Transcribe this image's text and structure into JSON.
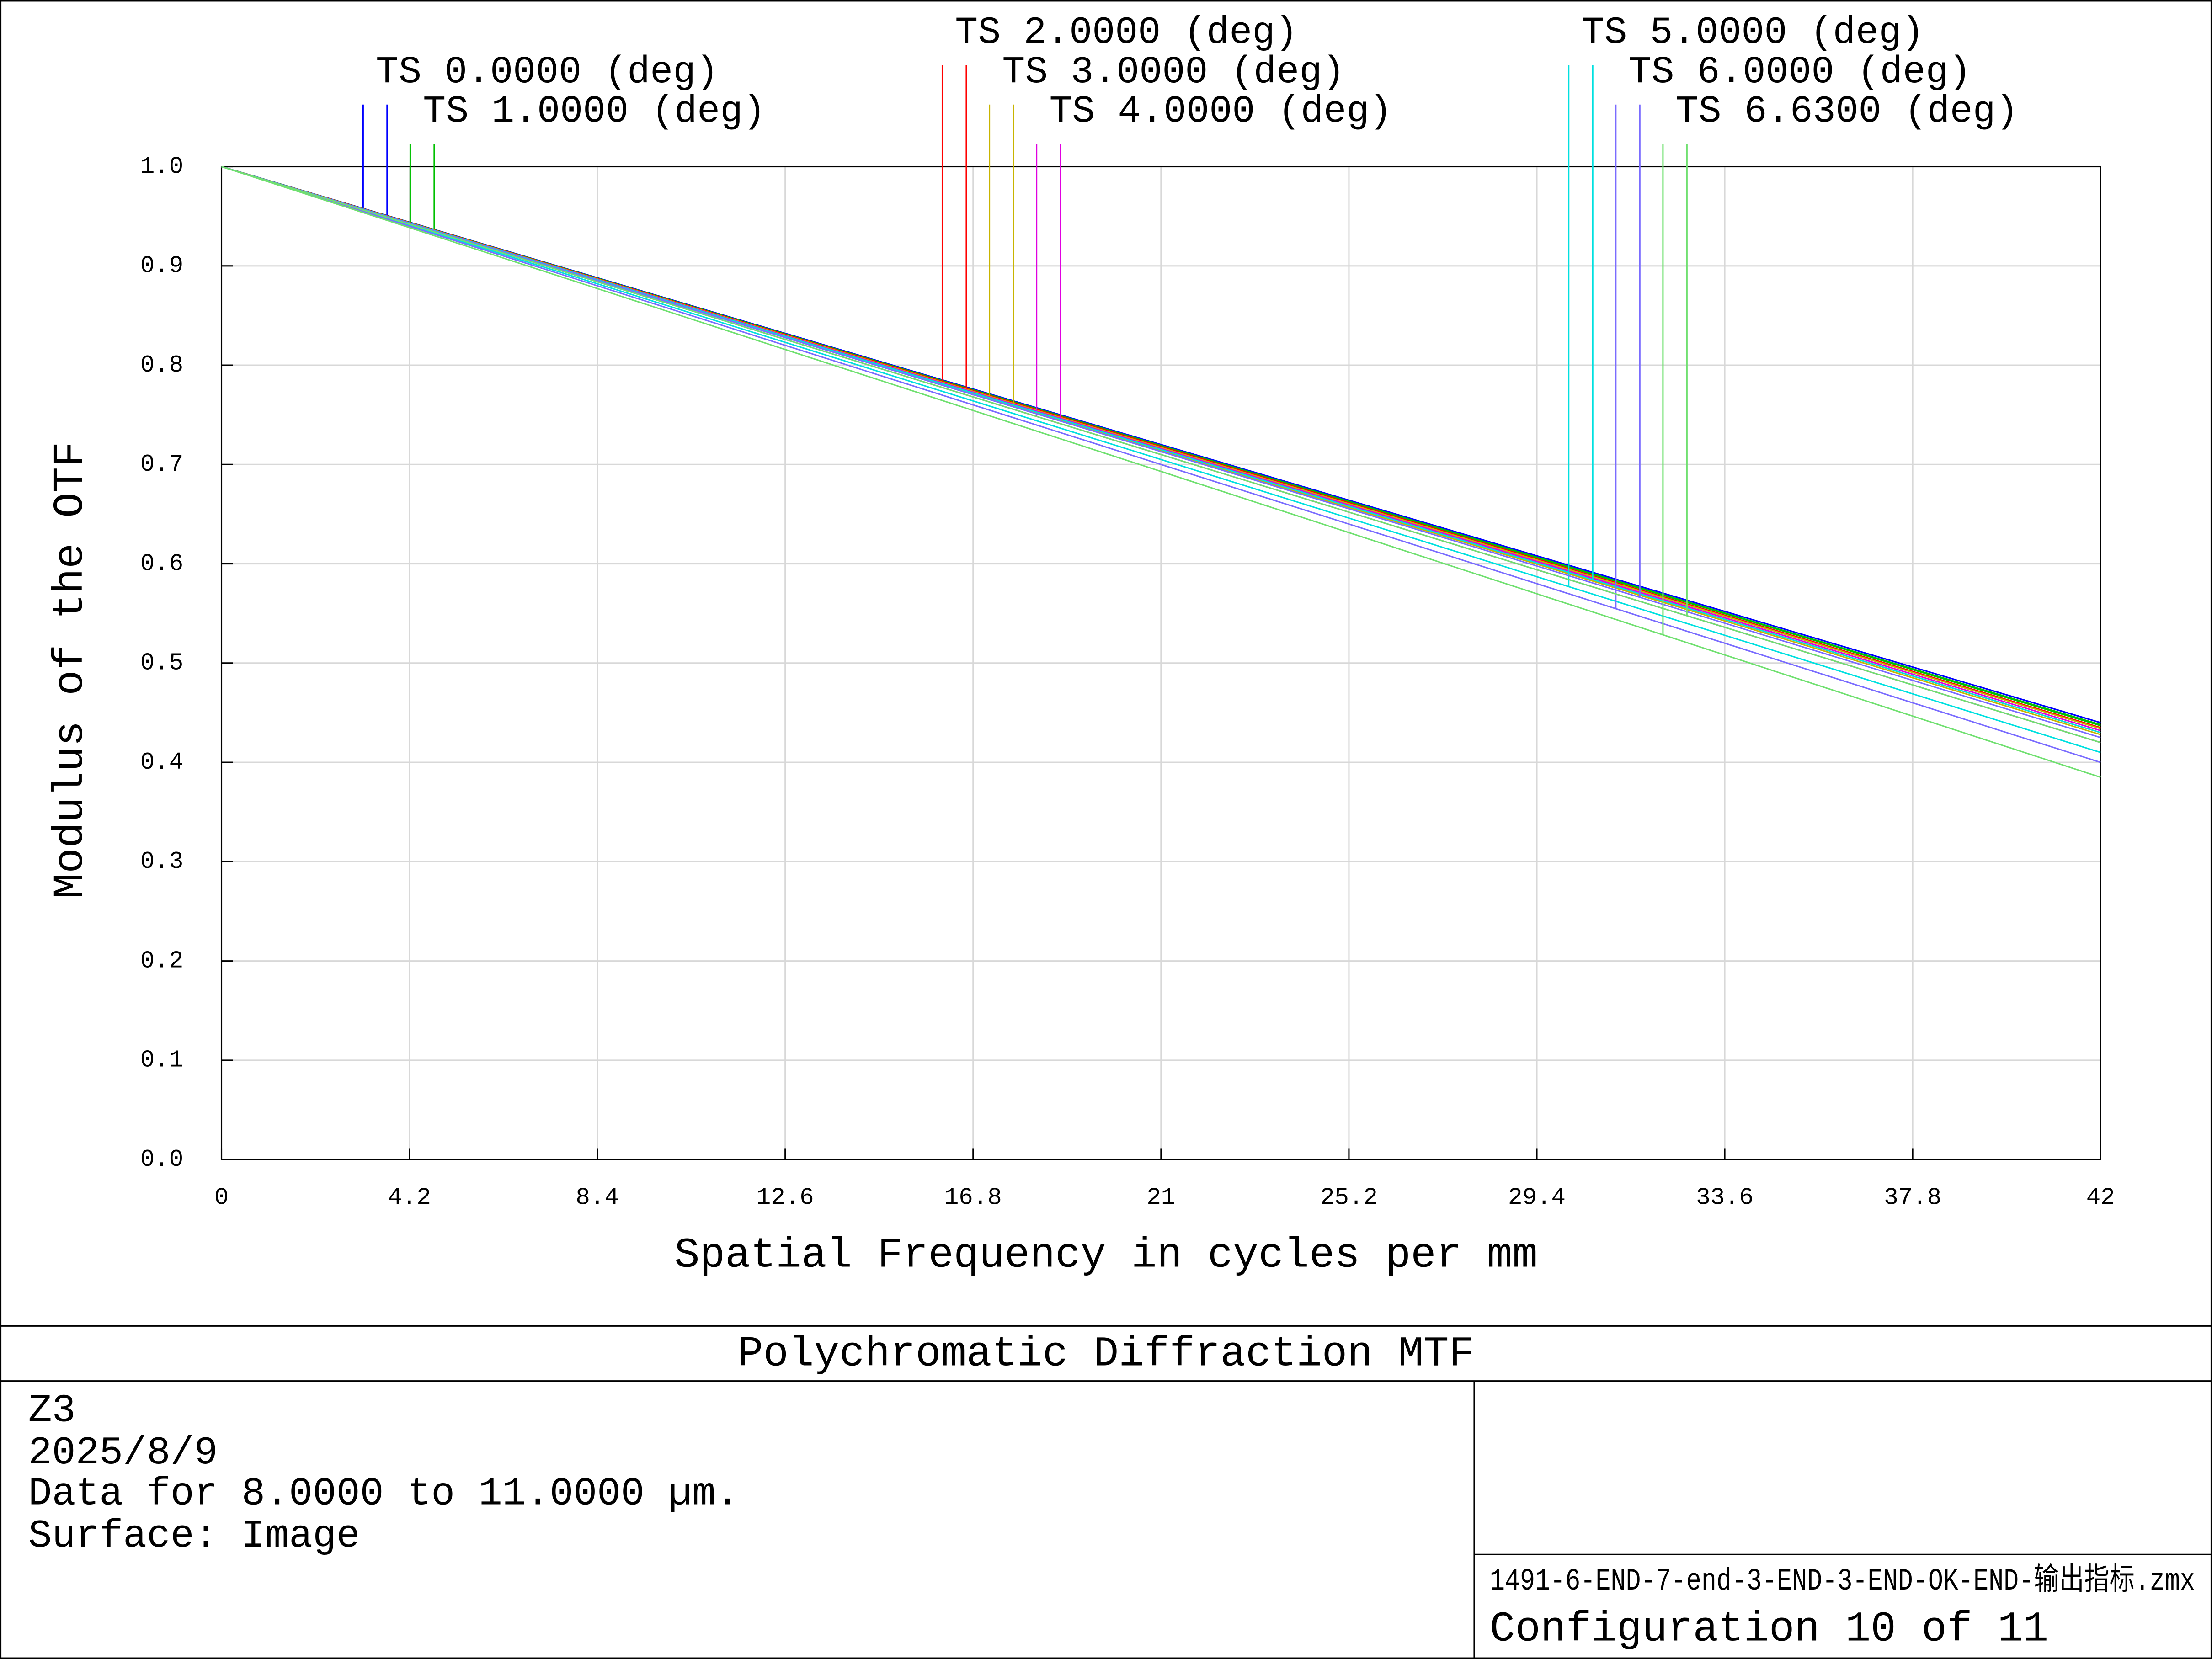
{
  "chart_data": {
    "type": "line",
    "title": "Polychromatic Diffraction MTF",
    "x_label": "Spatial Frequency in cycles per mm",
    "y_label": "Modulus of the OTF",
    "x": [
      0,
      21,
      42
    ],
    "xlim": [
      0,
      42
    ],
    "ylim": [
      0,
      1
    ],
    "xticks": [
      0,
      4.2,
      8.4,
      12.6,
      16.8,
      21,
      25.2,
      29.4,
      33.6,
      37.8,
      42
    ],
    "yticks": [
      {
        "value": 0,
        "label": "0.0"
      },
      0.1,
      0.2,
      0.3,
      0.4,
      0.5,
      0.6,
      0.7,
      0.8,
      0.9,
      {
        "value": 1,
        "label": "1.0"
      }
    ],
    "grid": true,
    "series": [
      {
        "name": "TS 0.0000 (deg)",
        "color": "#0000ff",
        "values": [
          1,
          0.72,
          0.44
        ],
        "sagittal_values": [
          1,
          0.72,
          0.44
        ]
      },
      {
        "name": "TS 1.0000 (deg)",
        "color": "#00c000",
        "values": [
          1,
          0.719,
          0.438
        ],
        "sagittal_values": [
          1,
          0.719,
          0.437
        ]
      },
      {
        "name": "TS 2.0000 (deg)",
        "color": "#ff0000",
        "values": [
          1,
          0.715,
          0.43
        ],
        "sagittal_values": [
          1,
          0.718,
          0.435
        ]
      },
      {
        "name": "TS 3.0000 (deg)",
        "color": "#c8b400",
        "values": [
          1,
          0.714,
          0.428
        ],
        "sagittal_values": [
          1,
          0.717,
          0.434
        ]
      },
      {
        "name": "TS 4.0000 (deg)",
        "color": "#e000e0",
        "values": [
          1,
          0.71,
          0.42
        ],
        "sagittal_values": [
          1,
          0.716,
          0.432
        ]
      },
      {
        "name": "TS 5.0000 (deg)",
        "color": "#00e0e0",
        "values": [
          1,
          0.705,
          0.41
        ],
        "sagittal_values": [
          1,
          0.715,
          0.43
        ]
      },
      {
        "name": "TS 6.0000 (deg)",
        "color": "#7a6cff",
        "values": [
          1,
          0.7,
          0.4
        ],
        "sagittal_values": [
          1,
          0.713,
          0.425
        ]
      },
      {
        "name": "TS 6.6300 (deg)",
        "color": "#70e070",
        "values": [
          1,
          0.693,
          0.385
        ],
        "sagittal_values": [
          1,
          0.71,
          0.42
        ]
      }
    ]
  },
  "footer": {
    "info": [
      "Z3",
      "2025/8/9",
      "Data for 8.0000 to 11.0000 µm.",
      "Surface: Image"
    ],
    "file": "1491-6-END-7-end-3-END-3-END-OK-END-输出指标.zmx",
    "configuration": "Configuration 10 of 11"
  }
}
